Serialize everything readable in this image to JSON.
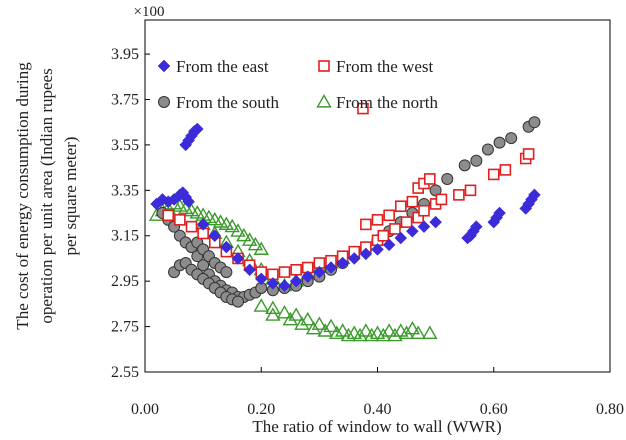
{
  "chart_data": {
    "type": "scatter",
    "xlabel": "The ratio of window to wall (WWR)",
    "ylabel": "The cost of energy consumption during operation per unit area (Indian rupees per square meter)",
    "ylabel_lines": [
      "The cost of energy consumption during",
      "operation per unit area (Indian rupees",
      "per square meter)"
    ],
    "y_multiplier": "×100",
    "xlim": [
      0.0,
      0.8
    ],
    "ylim": [
      2.55,
      4.1
    ],
    "x_ticks": [
      "0.00",
      "0.20",
      "0.40",
      "0.60",
      "0.80"
    ],
    "x_tick_values": [
      0.0,
      0.2,
      0.4,
      0.6,
      0.8
    ],
    "y_ticks": [
      "2.55",
      "2.75",
      "2.95",
      "3.15",
      "3.35",
      "3.55",
      "3.75",
      "3.95"
    ],
    "y_tick_values": [
      2.55,
      2.75,
      2.95,
      3.15,
      3.35,
      3.55,
      3.75,
      3.95
    ],
    "grid": false,
    "legend_position": "top-left",
    "series": [
      {
        "name": "From the east",
        "marker": "diamond",
        "color": "#3b2bd9",
        "points": [
          [
            0.02,
            3.29
          ],
          [
            0.03,
            3.31
          ],
          [
            0.04,
            3.3
          ],
          [
            0.05,
            3.31
          ],
          [
            0.06,
            3.33
          ],
          [
            0.065,
            3.34
          ],
          [
            0.07,
            3.32
          ],
          [
            0.075,
            3.3
          ],
          [
            0.07,
            3.55
          ],
          [
            0.075,
            3.57
          ],
          [
            0.08,
            3.59
          ],
          [
            0.085,
            3.61
          ],
          [
            0.09,
            3.62
          ],
          [
            0.1,
            3.2
          ],
          [
            0.12,
            3.15
          ],
          [
            0.14,
            3.1
          ],
          [
            0.16,
            3.05
          ],
          [
            0.18,
            3.0
          ],
          [
            0.2,
            2.96
          ],
          [
            0.22,
            2.94
          ],
          [
            0.24,
            2.93
          ],
          [
            0.26,
            2.95
          ],
          [
            0.28,
            2.97
          ],
          [
            0.3,
            2.99
          ],
          [
            0.32,
            3.01
          ],
          [
            0.34,
            3.03
          ],
          [
            0.36,
            3.05
          ],
          [
            0.38,
            3.07
          ],
          [
            0.4,
            3.09
          ],
          [
            0.42,
            3.11
          ],
          [
            0.44,
            3.14
          ],
          [
            0.46,
            3.17
          ],
          [
            0.48,
            3.19
          ],
          [
            0.5,
            3.21
          ],
          [
            0.555,
            3.14
          ],
          [
            0.56,
            3.15
          ],
          [
            0.565,
            3.17
          ],
          [
            0.57,
            3.19
          ],
          [
            0.6,
            3.21
          ],
          [
            0.605,
            3.23
          ],
          [
            0.61,
            3.25
          ],
          [
            0.655,
            3.27
          ],
          [
            0.66,
            3.29
          ],
          [
            0.665,
            3.31
          ],
          [
            0.67,
            3.33
          ]
        ]
      },
      {
        "name": "From the west",
        "marker": "square-open",
        "color": "#e02020",
        "points": [
          [
            0.04,
            3.24
          ],
          [
            0.06,
            3.22
          ],
          [
            0.08,
            3.19
          ],
          [
            0.1,
            3.16
          ],
          [
            0.12,
            3.12
          ],
          [
            0.14,
            3.08
          ],
          [
            0.16,
            3.05
          ],
          [
            0.18,
            3.02
          ],
          [
            0.2,
            2.99
          ],
          [
            0.22,
            2.98
          ],
          [
            0.24,
            2.99
          ],
          [
            0.26,
            3.0
          ],
          [
            0.28,
            3.01
          ],
          [
            0.3,
            3.03
          ],
          [
            0.32,
            3.04
          ],
          [
            0.34,
            3.06
          ],
          [
            0.36,
            3.08
          ],
          [
            0.38,
            3.1
          ],
          [
            0.4,
            3.13
          ],
          [
            0.41,
            3.15
          ],
          [
            0.43,
            3.18
          ],
          [
            0.45,
            3.21
          ],
          [
            0.47,
            3.23
          ],
          [
            0.48,
            3.26
          ],
          [
            0.5,
            3.29
          ],
          [
            0.51,
            3.31
          ],
          [
            0.38,
            3.2
          ],
          [
            0.4,
            3.22
          ],
          [
            0.42,
            3.24
          ],
          [
            0.44,
            3.28
          ],
          [
            0.46,
            3.3
          ],
          [
            0.47,
            3.36
          ],
          [
            0.48,
            3.38
          ],
          [
            0.49,
            3.4
          ],
          [
            0.375,
            3.71
          ],
          [
            0.54,
            3.33
          ],
          [
            0.56,
            3.35
          ],
          [
            0.6,
            3.42
          ],
          [
            0.62,
            3.44
          ],
          [
            0.655,
            3.49
          ],
          [
            0.66,
            3.51
          ]
        ]
      },
      {
        "name": "From the south",
        "marker": "circle",
        "color": "#8c8c8c",
        "points": [
          [
            0.03,
            3.25
          ],
          [
            0.04,
            3.22
          ],
          [
            0.05,
            3.19
          ],
          [
            0.06,
            3.15
          ],
          [
            0.07,
            3.12
          ],
          [
            0.08,
            3.1
          ],
          [
            0.09,
            3.06
          ],
          [
            0.1,
            3.02
          ],
          [
            0.11,
            2.98
          ],
          [
            0.12,
            2.95
          ],
          [
            0.13,
            2.93
          ],
          [
            0.14,
            2.91
          ],
          [
            0.15,
            2.9
          ],
          [
            0.16,
            2.88
          ],
          [
            0.17,
            2.88
          ],
          [
            0.18,
            2.89
          ],
          [
            0.19,
            2.9
          ],
          [
            0.2,
            2.92
          ],
          [
            0.05,
            2.99
          ],
          [
            0.06,
            3.02
          ],
          [
            0.07,
            3.03
          ],
          [
            0.08,
            3.0
          ],
          [
            0.09,
            2.98
          ],
          [
            0.1,
            2.96
          ],
          [
            0.11,
            2.94
          ],
          [
            0.12,
            2.92
          ],
          [
            0.13,
            2.9
          ],
          [
            0.14,
            2.88
          ],
          [
            0.15,
            2.87
          ],
          [
            0.16,
            2.86
          ],
          [
            0.09,
            3.12
          ],
          [
            0.1,
            3.09
          ],
          [
            0.11,
            3.06
          ],
          [
            0.12,
            3.03
          ],
          [
            0.13,
            3.01
          ],
          [
            0.14,
            2.99
          ],
          [
            0.22,
            2.91
          ],
          [
            0.24,
            2.92
          ],
          [
            0.26,
            2.93
          ],
          [
            0.28,
            2.95
          ],
          [
            0.3,
            2.97
          ],
          [
            0.32,
            3.0
          ],
          [
            0.34,
            3.03
          ],
          [
            0.36,
            3.06
          ],
          [
            0.38,
            3.09
          ],
          [
            0.4,
            3.13
          ],
          [
            0.42,
            3.17
          ],
          [
            0.44,
            3.21
          ],
          [
            0.46,
            3.25
          ],
          [
            0.48,
            3.29
          ],
          [
            0.5,
            3.35
          ],
          [
            0.52,
            3.4
          ],
          [
            0.55,
            3.46
          ],
          [
            0.57,
            3.48
          ],
          [
            0.59,
            3.53
          ],
          [
            0.61,
            3.56
          ],
          [
            0.63,
            3.58
          ],
          [
            0.66,
            3.63
          ],
          [
            0.67,
            3.65
          ]
        ]
      },
      {
        "name": "From the north",
        "marker": "triangle-open",
        "color": "#3a9a2a",
        "points": [
          [
            0.02,
            3.24
          ],
          [
            0.03,
            3.26
          ],
          [
            0.04,
            3.27
          ],
          [
            0.05,
            3.29
          ],
          [
            0.06,
            3.28
          ],
          [
            0.07,
            3.27
          ],
          [
            0.08,
            3.26
          ],
          [
            0.09,
            3.25
          ],
          [
            0.1,
            3.24
          ],
          [
            0.11,
            3.23
          ],
          [
            0.12,
            3.22
          ],
          [
            0.13,
            3.21
          ],
          [
            0.14,
            3.2
          ],
          [
            0.15,
            3.19
          ],
          [
            0.16,
            3.17
          ],
          [
            0.17,
            3.15
          ],
          [
            0.18,
            3.13
          ],
          [
            0.19,
            3.11
          ],
          [
            0.2,
            3.09
          ],
          [
            0.1,
            3.2
          ],
          [
            0.12,
            3.16
          ],
          [
            0.14,
            3.12
          ],
          [
            0.16,
            3.08
          ],
          [
            0.18,
            3.04
          ],
          [
            0.2,
            3.0
          ],
          [
            0.22,
            2.96
          ],
          [
            0.24,
            2.93
          ],
          [
            0.26,
            2.95
          ],
          [
            0.28,
            2.98
          ],
          [
            0.3,
            3.01
          ],
          [
            0.32,
            3.03
          ],
          [
            0.34,
            3.05
          ],
          [
            0.2,
            2.84
          ],
          [
            0.22,
            2.83
          ],
          [
            0.24,
            2.81
          ],
          [
            0.26,
            2.8
          ],
          [
            0.28,
            2.78
          ],
          [
            0.3,
            2.76
          ],
          [
            0.32,
            2.75
          ],
          [
            0.22,
            2.8
          ],
          [
            0.25,
            2.78
          ],
          [
            0.27,
            2.76
          ],
          [
            0.29,
            2.74
          ],
          [
            0.31,
            2.73
          ],
          [
            0.33,
            2.72
          ],
          [
            0.35,
            2.71
          ],
          [
            0.37,
            2.71
          ],
          [
            0.39,
            2.71
          ],
          [
            0.41,
            2.71
          ],
          [
            0.43,
            2.71
          ],
          [
            0.45,
            2.72
          ],
          [
            0.47,
            2.72
          ],
          [
            0.49,
            2.72
          ],
          [
            0.34,
            2.73
          ],
          [
            0.36,
            2.72
          ],
          [
            0.38,
            2.73
          ],
          [
            0.4,
            2.72
          ],
          [
            0.42,
            2.73
          ],
          [
            0.44,
            2.73
          ],
          [
            0.46,
            2.74
          ]
        ]
      }
    ]
  }
}
